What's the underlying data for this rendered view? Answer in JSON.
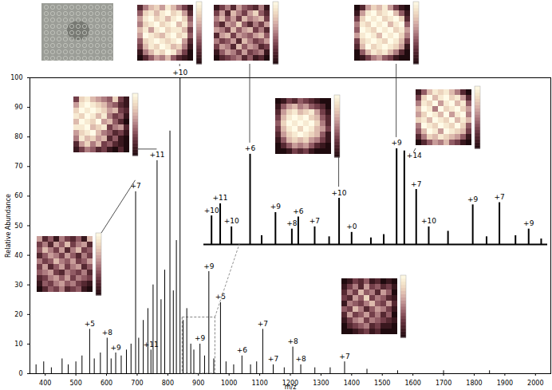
{
  "chart_data": [
    {
      "type": "stem",
      "x_label": "m/z",
      "y_label": "Relative Abundance",
      "color": "#000000",
      "xlim": [
        350,
        2050
      ],
      "xticks": [
        400,
        500,
        600,
        700,
        800,
        900,
        1000,
        1100,
        1200,
        1300,
        1400,
        1500,
        1600,
        1700,
        1800,
        1900,
        2000
      ],
      "ylim": [
        0,
        100
      ],
      "yticks": [
        0,
        10,
        20,
        30,
        40,
        50,
        60,
        70,
        80,
        90,
        100
      ],
      "x": [
        370,
        395,
        420,
        455,
        475,
        500,
        520,
        545,
        560,
        580,
        602,
        615,
        630,
        648,
        665,
        680,
        695,
        705,
        720,
        735,
        745,
        752,
        765,
        778,
        790,
        807,
        818,
        828,
        840,
        850,
        862,
        875,
        885,
        905,
        920,
        934,
        950,
        972,
        990,
        1015,
        1042,
        1070,
        1090,
        1110,
        1144,
        1180,
        1208,
        1234,
        1280,
        1330,
        1377,
        1450,
        1550,
        1700,
        1850
      ],
      "values": [
        3,
        4,
        2,
        5,
        3,
        4,
        6,
        15,
        5,
        7,
        12,
        5,
        7,
        6,
        8,
        10,
        61.5,
        12,
        18,
        22,
        8,
        30,
        72,
        25,
        35,
        82,
        28,
        45,
        100,
        18,
        22,
        10,
        8,
        10,
        6,
        34.5,
        5,
        24,
        4,
        3,
        6,
        3,
        4,
        15,
        3,
        2,
        9,
        3,
        2,
        2,
        4,
        1.5,
        1,
        1,
        1
      ],
      "labels": [
        null,
        null,
        null,
        null,
        null,
        null,
        null,
        "+5",
        null,
        null,
        "+8",
        null,
        "+9",
        null,
        null,
        null,
        "+7",
        null,
        null,
        null,
        "+11",
        null,
        "+11",
        null,
        null,
        null,
        null,
        null,
        "+10",
        null,
        null,
        null,
        null,
        "+9",
        null,
        "+9",
        null,
        "+5",
        null,
        null,
        "+6",
        null,
        null,
        "+7",
        "+7",
        null,
        "+8",
        "+8",
        null,
        null,
        "+7",
        null,
        null,
        null,
        null
      ],
      "zoom_box": {
        "xlim": [
          848,
          955
        ],
        "ylim": [
          0,
          19
        ]
      }
    },
    {
      "type": "stem",
      "color": "#000000",
      "tick_labels": false,
      "xlim": [
        848,
        955
      ],
      "ylim": [
        0,
        100
      ],
      "x": [
        850.4,
        853.1,
        856.6,
        862.4,
        866,
        870.3,
        875.4,
        877.4,
        882.5,
        887,
        890.1,
        894,
        900,
        904,
        908,
        910.4,
        914.1,
        918,
        924,
        931.7,
        936,
        940,
        945,
        949.1,
        953
      ],
      "values": [
        26,
        37,
        16,
        82,
        8,
        29,
        14,
        25,
        16,
        7,
        42,
        11,
        6,
        9,
        87,
        85,
        50,
        16,
        12,
        36,
        7,
        38,
        8,
        14,
        5
      ],
      "labels": [
        "+10",
        "+11",
        "+10",
        "+6",
        null,
        "+9",
        "+8",
        "+6",
        "+7",
        null,
        "+10",
        "+0",
        null,
        null,
        "+9",
        "+14",
        "+7",
        "+10",
        null,
        "+9",
        null,
        "+7",
        null,
        "+9",
        null
      ]
    },
    {
      "type": "heatmap",
      "tick_labels": false,
      "colorbar_range": [
        0,
        10
      ],
      "linked_peak": {
        "chart": 0,
        "x": 840
      },
      "cells": [
        [
          2,
          5,
          7,
          8,
          6,
          9,
          7,
          5,
          3,
          1
        ],
        [
          4,
          8,
          9,
          7,
          9,
          10,
          8,
          9,
          6,
          2
        ],
        [
          6,
          9,
          10,
          8,
          9,
          7,
          9,
          10,
          8,
          4
        ],
        [
          5,
          8,
          9,
          10,
          8,
          9,
          10,
          7,
          9,
          5
        ],
        [
          7,
          9,
          6,
          9,
          10,
          8,
          9,
          9,
          7,
          3
        ],
        [
          6,
          10,
          9,
          8,
          7,
          9,
          10,
          8,
          9,
          4
        ],
        [
          4,
          8,
          9,
          10,
          9,
          8,
          9,
          10,
          6,
          2
        ],
        [
          3,
          7,
          9,
          8,
          10,
          9,
          7,
          8,
          5,
          1
        ],
        [
          1,
          5,
          7,
          9,
          8,
          10,
          9,
          6,
          3,
          0
        ],
        [
          0,
          2,
          4,
          6,
          5,
          7,
          4,
          2,
          1,
          0
        ]
      ]
    },
    {
      "type": "heatmap",
      "tick_labels": false,
      "colorbar_range": [
        0,
        10
      ],
      "linked_peak": {
        "chart": 1,
        "x": 862.4
      },
      "cells": [
        [
          1,
          3,
          5,
          2,
          6,
          4,
          3,
          2,
          5,
          1
        ],
        [
          3,
          6,
          2,
          7,
          5,
          3,
          6,
          8,
          4,
          2
        ],
        [
          5,
          7,
          4,
          6,
          3,
          7,
          5,
          6,
          7,
          3
        ],
        [
          4,
          2,
          6,
          5,
          8,
          4,
          2,
          5,
          3,
          6
        ],
        [
          6,
          5,
          3,
          7,
          4,
          6,
          7,
          3,
          5,
          2
        ],
        [
          2,
          6,
          7,
          3,
          6,
          5,
          4,
          6,
          7,
          4
        ],
        [
          5,
          3,
          4,
          6,
          2,
          7,
          5,
          3,
          4,
          6
        ],
        [
          3,
          6,
          5,
          2,
          7,
          4,
          6,
          5,
          2,
          3
        ],
        [
          1,
          4,
          6,
          5,
          3,
          6,
          3,
          4,
          5,
          1
        ],
        [
          0,
          2,
          3,
          4,
          5,
          2,
          4,
          1,
          2,
          0
        ]
      ]
    },
    {
      "type": "heatmap",
      "tick_labels": false,
      "colorbar_range": [
        0,
        10
      ],
      "linked_peak": {
        "chart": 1,
        "x": 908
      },
      "cells": [
        [
          0,
          2,
          6,
          8,
          7,
          9,
          6,
          3,
          1,
          0
        ],
        [
          1,
          6,
          9,
          10,
          8,
          9,
          10,
          7,
          4,
          1
        ],
        [
          3,
          8,
          10,
          9,
          10,
          8,
          9,
          10,
          8,
          2
        ],
        [
          5,
          9,
          8,
          10,
          9,
          10,
          7,
          9,
          10,
          4
        ],
        [
          4,
          10,
          9,
          8,
          10,
          9,
          10,
          8,
          9,
          6
        ],
        [
          6,
          9,
          10,
          9,
          7,
          10,
          9,
          10,
          8,
          5
        ],
        [
          3,
          8,
          9,
          10,
          9,
          8,
          10,
          9,
          7,
          3
        ],
        [
          2,
          7,
          10,
          8,
          9,
          10,
          9,
          8,
          6,
          1
        ],
        [
          0,
          4,
          7,
          9,
          8,
          9,
          7,
          5,
          2,
          0
        ],
        [
          0,
          1,
          3,
          5,
          6,
          4,
          3,
          1,
          0,
          0
        ]
      ]
    },
    {
      "type": "heatmap",
      "tick_labels": false,
      "colorbar_range": [
        0,
        10
      ],
      "linked_peak": {
        "chart": 0,
        "x": 765
      },
      "cells": [
        [
          3,
          8,
          9,
          7,
          6,
          5,
          4,
          8,
          3,
          1
        ],
        [
          6,
          9,
          10,
          9,
          8,
          7,
          5,
          4,
          2,
          1
        ],
        [
          8,
          10,
          9,
          10,
          9,
          8,
          6,
          7,
          3,
          2
        ],
        [
          9,
          8,
          10,
          9,
          7,
          9,
          5,
          3,
          4,
          1
        ],
        [
          7,
          10,
          9,
          8,
          10,
          6,
          7,
          4,
          2,
          0
        ],
        [
          9,
          9,
          10,
          7,
          8,
          9,
          3,
          5,
          6,
          2
        ],
        [
          6,
          8,
          9,
          10,
          7,
          5,
          4,
          2,
          3,
          1
        ],
        [
          5,
          9,
          7,
          8,
          6,
          7,
          2,
          4,
          1,
          0
        ],
        [
          2,
          6,
          8,
          5,
          7,
          3,
          4,
          2,
          1,
          0
        ],
        [
          1,
          3,
          5,
          4,
          2,
          3,
          1,
          0,
          2,
          0
        ]
      ]
    },
    {
      "type": "heatmap",
      "tick_labels": false,
      "colorbar_range": [
        0,
        10
      ],
      "linked_peak": {
        "chart": 1,
        "x": 890.1
      },
      "cells": [
        [
          0,
          1,
          3,
          2,
          4,
          3,
          2,
          1,
          0,
          0
        ],
        [
          1,
          4,
          6,
          7,
          5,
          6,
          4,
          3,
          2,
          0
        ],
        [
          2,
          6,
          8,
          9,
          7,
          8,
          9,
          6,
          3,
          1
        ],
        [
          3,
          7,
          9,
          10,
          9,
          10,
          8,
          7,
          4,
          2
        ],
        [
          4,
          8,
          10,
          9,
          10,
          9,
          10,
          8,
          5,
          2
        ],
        [
          3,
          7,
          9,
          10,
          8,
          10,
          9,
          7,
          6,
          3
        ],
        [
          2,
          6,
          8,
          9,
          10,
          9,
          8,
          7,
          4,
          1
        ],
        [
          1,
          4,
          7,
          8,
          7,
          8,
          6,
          5,
          3,
          1
        ],
        [
          0,
          2,
          4,
          6,
          5,
          6,
          4,
          2,
          1,
          0
        ],
        [
          0,
          0,
          1,
          3,
          2,
          3,
          1,
          0,
          0,
          0
        ]
      ]
    },
    {
      "type": "heatmap",
      "tick_labels": false,
      "colorbar_range": [
        0,
        10
      ],
      "linked_peak": {
        "chart": 1,
        "x": 910.4
      },
      "cells": [
        [
          1,
          4,
          7,
          9,
          8,
          9,
          7,
          5,
          2,
          0
        ],
        [
          3,
          8,
          10,
          7,
          9,
          10,
          8,
          9,
          6,
          2
        ],
        [
          5,
          9,
          8,
          10,
          6,
          9,
          10,
          7,
          9,
          4
        ],
        [
          7,
          10,
          9,
          5,
          10,
          8,
          9,
          10,
          8,
          6
        ],
        [
          6,
          8,
          10,
          9,
          7,
          10,
          6,
          9,
          10,
          5
        ],
        [
          8,
          9,
          7,
          10,
          9,
          8,
          10,
          7,
          9,
          7
        ],
        [
          5,
          10,
          9,
          8,
          10,
          9,
          8,
          10,
          8,
          4
        ],
        [
          4,
          7,
          10,
          9,
          6,
          10,
          9,
          8,
          7,
          3
        ],
        [
          2,
          5,
          8,
          7,
          9,
          8,
          7,
          6,
          4,
          1
        ],
        [
          0,
          2,
          4,
          6,
          5,
          7,
          4,
          3,
          1,
          0
        ]
      ]
    },
    {
      "type": "heatmap",
      "tick_labels": false,
      "colorbar_range": [
        0,
        10
      ],
      "linked_peak": {
        "chart": 0,
        "x": 695
      },
      "cells": [
        [
          6,
          2,
          4,
          1,
          5,
          3,
          2,
          4,
          1,
          7
        ],
        [
          3,
          5,
          2,
          6,
          4,
          7,
          3,
          5,
          6,
          2
        ],
        [
          4,
          7,
          5,
          3,
          6,
          2,
          5,
          7,
          3,
          4
        ],
        [
          2,
          4,
          6,
          5,
          3,
          6,
          4,
          2,
          5,
          3
        ],
        [
          5,
          3,
          4,
          7,
          5,
          4,
          6,
          3,
          4,
          6
        ],
        [
          3,
          6,
          2,
          4,
          6,
          3,
          5,
          6,
          2,
          4
        ],
        [
          4,
          5,
          6,
          3,
          2,
          5,
          4,
          3,
          5,
          2
        ],
        [
          2,
          3,
          5,
          6,
          4,
          6,
          3,
          5,
          4,
          3
        ],
        [
          1,
          4,
          3,
          5,
          6,
          4,
          5,
          3,
          2,
          1
        ],
        [
          0,
          2,
          4,
          3,
          5,
          2,
          3,
          4,
          1,
          0
        ]
      ]
    },
    {
      "type": "heatmap",
      "tick_labels": false,
      "colorbar_range": [
        0,
        10
      ],
      "cells": [
        [
          0,
          1,
          3,
          2,
          4,
          1,
          2,
          0,
          1,
          0
        ],
        [
          1,
          3,
          5,
          2,
          6,
          3,
          4,
          2,
          3,
          1
        ],
        [
          2,
          5,
          3,
          7,
          4,
          5,
          2,
          6,
          4,
          0
        ],
        [
          3,
          2,
          6,
          4,
          8,
          3,
          5,
          4,
          2,
          1
        ],
        [
          1,
          5,
          4,
          3,
          5,
          7,
          4,
          3,
          6,
          2
        ],
        [
          4,
          3,
          7,
          5,
          2,
          4,
          6,
          5,
          3,
          1
        ],
        [
          2,
          6,
          3,
          4,
          6,
          3,
          5,
          2,
          4,
          0
        ],
        [
          1,
          3,
          5,
          6,
          3,
          5,
          4,
          3,
          2,
          1
        ],
        [
          0,
          2,
          3,
          4,
          5,
          2,
          3,
          1,
          1,
          0
        ],
        [
          0,
          0,
          1,
          2,
          3,
          1,
          2,
          0,
          0,
          0
        ]
      ]
    }
  ]
}
